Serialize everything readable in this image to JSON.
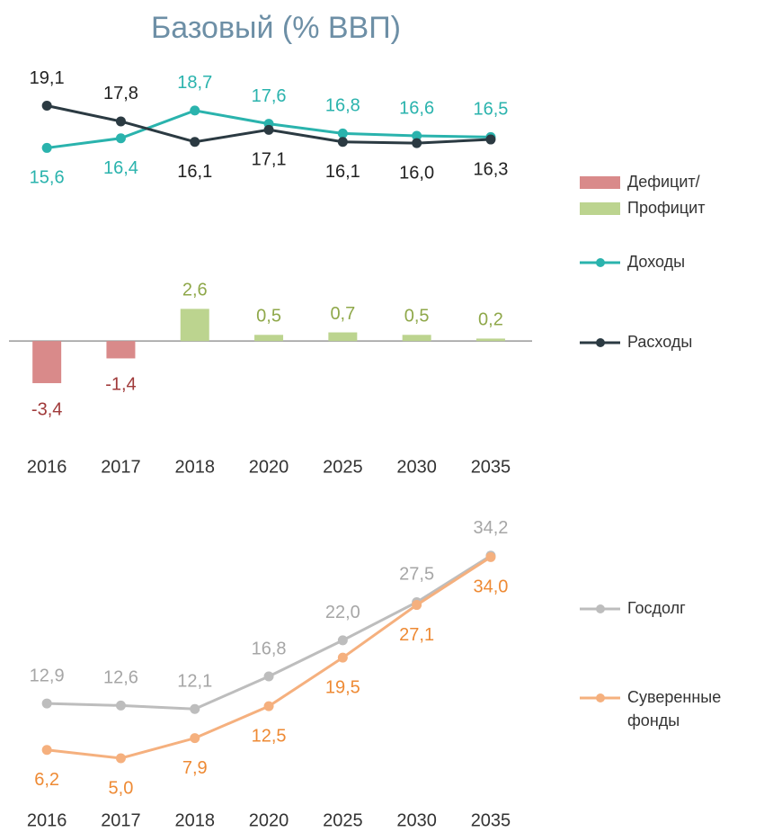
{
  "chart_data": [
    {
      "type": "line",
      "title": "Базовый (% ВВП)",
      "categories": [
        "2016",
        "2017",
        "2018",
        "2020",
        "2025",
        "2030",
        "2035"
      ],
      "ylim": [
        12.2,
        21.9
      ],
      "series": [
        {
          "name": "Доходы",
          "color": "#2ab3ad",
          "values": [
            15.6,
            16.4,
            18.7,
            17.6,
            16.8,
            16.6,
            16.5
          ],
          "value_labels": [
            "15,6",
            "16,4",
            "18,7",
            "17,6",
            "16,8",
            "16,6",
            "16,5"
          ]
        },
        {
          "name": "Расходы",
          "color": "#2b3a42",
          "values": [
            19.1,
            17.8,
            16.1,
            17.1,
            16.1,
            16.0,
            16.3
          ],
          "value_labels": [
            "19,1",
            "17,8",
            "16,1",
            "17,1",
            "16,1",
            "16,0",
            "16,3"
          ]
        }
      ]
    },
    {
      "type": "bar",
      "categories": [
        "2016",
        "2017",
        "2018",
        "2020",
        "2025",
        "2030",
        "2035"
      ],
      "ylim": [
        -5,
        3.5
      ],
      "values": [
        -3.4,
        -1.4,
        2.6,
        0.5,
        0.7,
        0.5,
        0.2
      ],
      "value_labels": [
        "-3,4",
        "-1,4",
        "2,6",
        "0,5",
        "0,7",
        "0,5",
        "0,2"
      ],
      "legend_labels": [
        "Дефицит/",
        "Профицит"
      ],
      "colors": {
        "negative": "#d98a8a",
        "positive": "#bcd48f"
      }
    },
    {
      "type": "line",
      "categories": [
        "2016",
        "2017",
        "2018",
        "2020",
        "2025",
        "2030",
        "2035"
      ],
      "ylim": [
        1.5,
        39.1
      ],
      "series": [
        {
          "name": "Госдолг",
          "color": "#bdbdbd",
          "values": [
            12.9,
            12.6,
            12.1,
            16.8,
            22.0,
            27.5,
            34.2
          ],
          "value_labels": [
            "12,9",
            "12,6",
            "12,1",
            "16,8",
            "22,0",
            "27,5",
            "34,2"
          ]
        },
        {
          "name": "Суверенные фонды",
          "color": "#f5b07e",
          "values": [
            6.2,
            5.0,
            7.9,
            12.5,
            19.5,
            27.1,
            34.0
          ],
          "value_labels": [
            "6,2",
            "5,0",
            "7,9",
            "12,5",
            "19,5",
            "27,1",
            "34,0"
          ]
        }
      ]
    }
  ]
}
